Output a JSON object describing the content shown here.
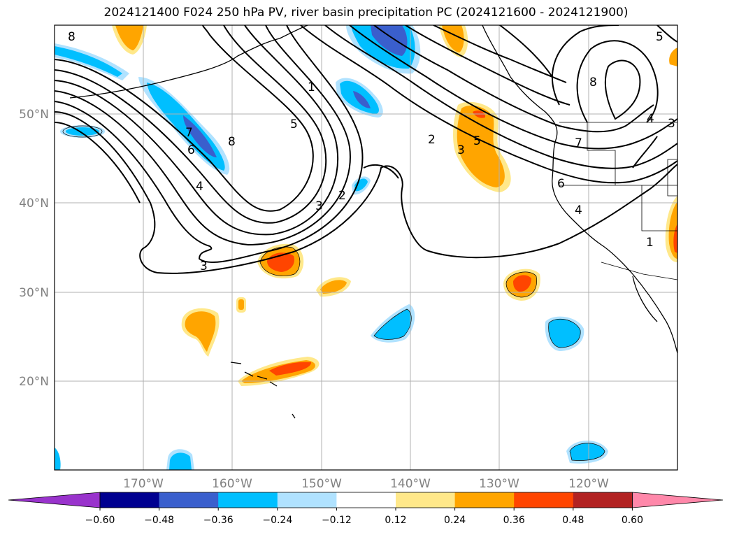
{
  "title": "2024121400 F024 250 hPa PV, river basin precipitation PC (2024121600 - 2024121900)",
  "map": {
    "lat_labels": [
      "50°N",
      "40°N",
      "30°N",
      "20°N"
    ],
    "lon_labels": [
      "170°W",
      "160°W",
      "150°W",
      "140°W",
      "130°W",
      "120°W"
    ],
    "contour_labels": [
      "8",
      "1",
      "5",
      "7",
      "6",
      "8",
      "4",
      "3",
      "3",
      "2",
      "2",
      "3",
      "5",
      "6",
      "4",
      "1",
      "7",
      "4",
      "8",
      "5",
      "3"
    ]
  },
  "colorbar": {
    "ticks": [
      "−0.60",
      "−0.48",
      "−0.36",
      "−0.24",
      "−0.12",
      "0.12",
      "0.24",
      "0.36",
      "0.48",
      "0.60"
    ],
    "colors": [
      "#9933cc",
      "#000090",
      "#3a5fcd",
      "#00bfff",
      "#b0e2ff",
      "#ffffff",
      "#ffe88a",
      "#ffa500",
      "#ff4500",
      "#b22222",
      "#ff88aa"
    ]
  },
  "colors": {
    "neg_strong": "#3a5fcd",
    "neg_mid": "#00bfff",
    "neg_weak": "#b0e2ff",
    "pos_weak": "#ffe88a",
    "pos_mid": "#ffa500",
    "pos_strong": "#ff4500",
    "grid": "#b0b0b0"
  }
}
